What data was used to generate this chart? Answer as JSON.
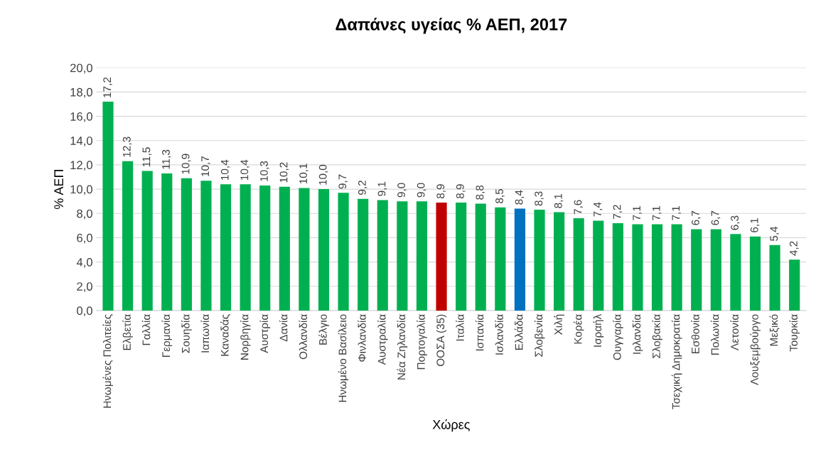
{
  "chart_data": {
    "type": "bar",
    "title": "Δαπάνες υγείας % ΑΕΠ, 2017",
    "xlabel": "Χώρες",
    "ylabel": "% ΑΕΠ",
    "categories": [
      "Ηνωμένες Πολιτείες",
      "Ελβετία",
      "Γαλλία",
      "Γερμανία",
      "Σουηδία",
      "Ιαπωνία",
      "Καναδάς",
      "Νορβηγία",
      "Αυστρία",
      "Δανία",
      "Ολλανδία",
      "Βέλγιο",
      "Ηνωμένο Βασίλειο",
      "Φινλανδία",
      "Αυστραλία",
      "Νέα Ζηλανδία",
      "Πορτογαλία",
      "ΟΟΣΑ (35)",
      "Ιταλία",
      "Ισπανία",
      "Ισλανδία",
      "Ελλάδα",
      "Σλοβενία",
      "Χιλή",
      "Κορέα",
      "Ισραήλ",
      "Ουγγαρία",
      "Ιρλανδία",
      "Σλοβακία",
      "Τσεχική Δημοκρατία",
      "Εσθονία",
      "Πολωνία",
      "Λετονία",
      "Λουξεμβούργο",
      "Μεξικό",
      "Τουρκία"
    ],
    "values": [
      17.2,
      12.3,
      11.5,
      11.3,
      10.9,
      10.7,
      10.4,
      10.4,
      10.3,
      10.2,
      10.1,
      10.0,
      9.7,
      9.2,
      9.1,
      9.0,
      9.0,
      8.9,
      8.9,
      8.8,
      8.5,
      8.4,
      8.3,
      8.1,
      7.6,
      7.4,
      7.2,
      7.1,
      7.1,
      7.1,
      6.7,
      6.7,
      6.3,
      6.1,
      5.4,
      4.2
    ],
    "value_labels": [
      "17,2",
      "12,3",
      "11,5",
      "11,3",
      "10,9",
      "10,7",
      "10,4",
      "10,4",
      "10,3",
      "10,2",
      "10,1",
      "10,0",
      "9,7",
      "9,2",
      "9,1",
      "9,0",
      "9,0",
      "8,9",
      "8,9",
      "8,8",
      "8,5",
      "8,4",
      "8,3",
      "8,1",
      "7,6",
      "7,4",
      "7,2",
      "7,1",
      "7,1",
      "7,1",
      "6,7",
      "6,7",
      "6,3",
      "6,1",
      "5,4",
      "4,2"
    ],
    "colors": [
      "#00b050",
      "#00b050",
      "#00b050",
      "#00b050",
      "#00b050",
      "#00b050",
      "#00b050",
      "#00b050",
      "#00b050",
      "#00b050",
      "#00b050",
      "#00b050",
      "#00b050",
      "#00b050",
      "#00b050",
      "#00b050",
      "#00b050",
      "#c00000",
      "#00b050",
      "#00b050",
      "#00b050",
      "#0070c0",
      "#00b050",
      "#00b050",
      "#00b050",
      "#00b050",
      "#00b050",
      "#00b050",
      "#00b050",
      "#00b050",
      "#00b050",
      "#00b050",
      "#00b050",
      "#00b050",
      "#00b050",
      "#00b050"
    ],
    "ylim": [
      0,
      20
    ],
    "yticks": [
      {
        "value": 0,
        "label": "0,0"
      },
      {
        "value": 2,
        "label": "2,0"
      },
      {
        "value": 4,
        "label": "4,0"
      },
      {
        "value": 6,
        "label": "6,0"
      },
      {
        "value": 8,
        "label": "8,0"
      },
      {
        "value": 10,
        "label": "10,0"
      },
      {
        "value": 12,
        "label": "12,0"
      },
      {
        "value": 14,
        "label": "14,0"
      },
      {
        "value": 16,
        "label": "16,0"
      },
      {
        "value": 18,
        "label": "18,0"
      },
      {
        "value": 20,
        "label": "20,0"
      }
    ],
    "grid": "y"
  }
}
